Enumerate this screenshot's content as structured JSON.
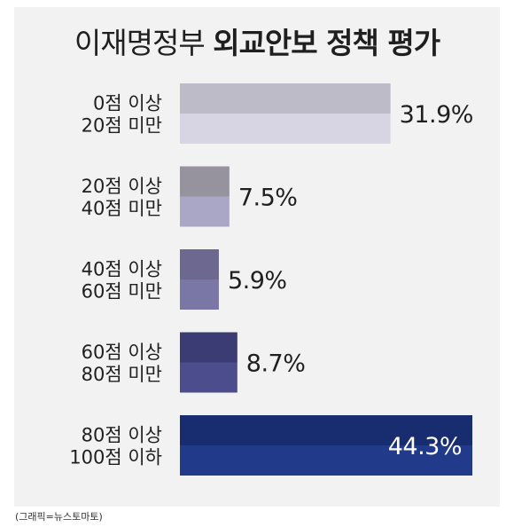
{
  "chart_data": {
    "type": "bar",
    "orientation": "horizontal",
    "title_parts": [
      "이재명정부 ",
      "외교안보",
      " 정책 평가"
    ],
    "categories": [
      [
        "0점 이상",
        "20점 미만"
      ],
      [
        "20점 이상",
        "40점 미만"
      ],
      [
        "40점 이상",
        "60점 미만"
      ],
      [
        "60점 이상",
        "80점 미만"
      ],
      [
        "80점 이상",
        "100점 이하"
      ]
    ],
    "values": [
      31.9,
      7.5,
      5.9,
      8.7,
      44.3
    ],
    "value_labels": [
      "31.9%",
      "7.5%",
      "5.9%",
      "8.7%",
      "44.3%"
    ],
    "unit": "%",
    "xlim": [
      0,
      44.3
    ],
    "grid": false,
    "bar_colors": [
      [
        "#bebbc9",
        "#d7d5e4"
      ],
      [
        "#96939f",
        "#aaa7c6"
      ],
      [
        "#6c6890",
        "#7a77a6"
      ],
      [
        "#3b3c73",
        "#4b4d8c"
      ],
      [
        "#182c70",
        "#213a8a"
      ]
    ]
  },
  "source": "(그래픽=뉴스토마토)"
}
